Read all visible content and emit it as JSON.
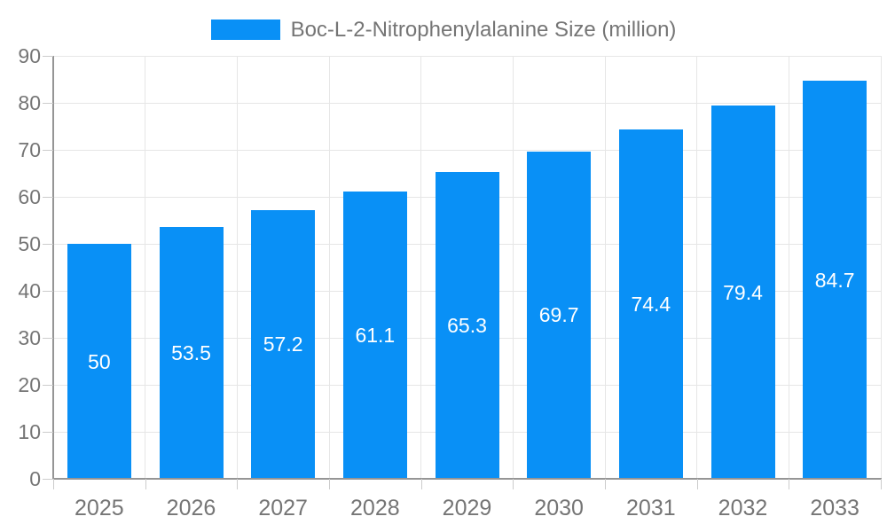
{
  "chart_data": {
    "type": "bar",
    "title": "Boc-L-2-Nitrophenylalanine Size (million)",
    "categories": [
      "2025",
      "2026",
      "2027",
      "2028",
      "2029",
      "2030",
      "2031",
      "2032",
      "2033"
    ],
    "values": [
      50,
      53.5,
      57.2,
      61.1,
      65.3,
      69.7,
      74.4,
      79.4,
      84.7
    ],
    "value_labels": [
      "50",
      "53.5",
      "57.2",
      "61.1",
      "65.3",
      "69.7",
      "74.4",
      "79.4",
      "84.7"
    ],
    "xlabel": "",
    "ylabel": "",
    "ylim": [
      0,
      90
    ],
    "ytick_step": 10,
    "ytick_labels": [
      "0",
      "10",
      "20",
      "30",
      "40",
      "50",
      "60",
      "70",
      "80",
      "90"
    ],
    "grid": "horizontal and vertical gridlines on",
    "legend_position": "top-center",
    "bar_label_position": "inside-middle",
    "colors": {
      "bar": "#0990f6",
      "bar_label": "#ffffff",
      "grid": "#e6e6e6",
      "axis": "#959595",
      "tick": "#cccccc",
      "text": "#757575"
    }
  }
}
